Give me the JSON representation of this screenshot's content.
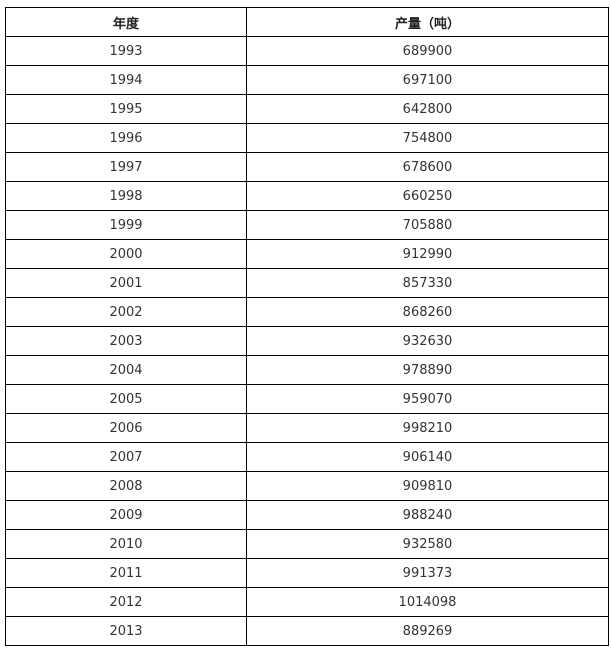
{
  "table": {
    "headers": {
      "year": "年度",
      "production": "产量（吨）"
    },
    "rows": [
      {
        "year": "1993",
        "production": "689900"
      },
      {
        "year": "1994",
        "production": "697100"
      },
      {
        "year": "1995",
        "production": "642800"
      },
      {
        "year": "1996",
        "production": "754800"
      },
      {
        "year": "1997",
        "production": "678600"
      },
      {
        "year": "1998",
        "production": "660250"
      },
      {
        "year": "1999",
        "production": "705880"
      },
      {
        "year": "2000",
        "production": "912990"
      },
      {
        "year": "2001",
        "production": "857330"
      },
      {
        "year": "2002",
        "production": "868260"
      },
      {
        "year": "2003",
        "production": "932630"
      },
      {
        "year": "2004",
        "production": "978890"
      },
      {
        "year": "2005",
        "production": "959070"
      },
      {
        "year": "2006",
        "production": "998210"
      },
      {
        "year": "2007",
        "production": "906140"
      },
      {
        "year": "2008",
        "production": "909810"
      },
      {
        "year": "2009",
        "production": "988240"
      },
      {
        "year": "2010",
        "production": "932580"
      },
      {
        "year": "2011",
        "production": "991373"
      },
      {
        "year": "2012",
        "production": "1014098"
      },
      {
        "year": "2013",
        "production": "889269"
      }
    ]
  }
}
